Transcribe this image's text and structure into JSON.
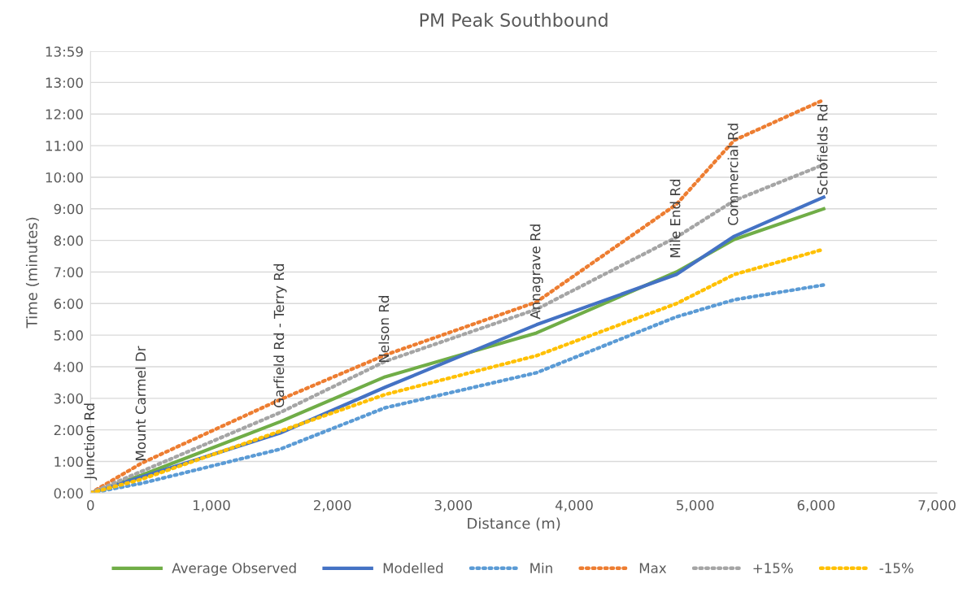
{
  "chart_data": {
    "type": "line",
    "title": "PM Peak Southbound",
    "xlabel": "Distance (m)",
    "ylabel": "Time (minutes)",
    "x": [
      0,
      424,
      1568,
      2436,
      3688,
      4845,
      5323,
      6063
    ],
    "series": [
      {
        "name": "Average Observed",
        "color": "#70ad47",
        "line_style": "solid",
        "values": [
          0,
          0.57,
          2.26,
          3.68,
          5.07,
          7.0,
          8.03,
          9.0
        ]
      },
      {
        "name": "Modelled",
        "color": "#4472c4",
        "line_style": "solid",
        "values": [
          0,
          0.51,
          1.9,
          3.35,
          5.33,
          6.92,
          8.13,
          9.37
        ]
      },
      {
        "name": "Min",
        "color": "#5b9bd5",
        "line_style": "dotted",
        "values": [
          0,
          0.31,
          1.39,
          2.7,
          3.81,
          5.58,
          6.12,
          6.59
        ]
      },
      {
        "name": "Max",
        "color": "#ed7d31",
        "line_style": "dotted",
        "values": [
          0,
          0.95,
          2.96,
          4.37,
          6.05,
          9.14,
          11.17,
          12.45
        ]
      },
      {
        "name": "+15%",
        "color": "#a5a5a5",
        "line_style": "dotted",
        "values": [
          0,
          0.69,
          2.55,
          4.17,
          5.82,
          8.1,
          9.26,
          10.4
        ]
      },
      {
        "name": "-15%",
        "color": "#ffc000",
        "line_style": "dotted",
        "values": [
          0,
          0.44,
          1.96,
          3.12,
          4.35,
          6.0,
          6.92,
          7.72
        ]
      }
    ],
    "annotations": [
      {
        "text": "Junction Rd",
        "x": 0,
        "y": 0
      },
      {
        "text": "Mount Carmel Dr",
        "x": 424,
        "y": 0.57
      },
      {
        "text": "Garfield Rd - Terry Rd",
        "x": 1568,
        "y": 2.26
      },
      {
        "text": "Nelson Rd",
        "x": 2436,
        "y": 3.68
      },
      {
        "text": "Annagrave Rd",
        "x": 3688,
        "y": 5.07
      },
      {
        "text": "Mile End Rd",
        "x": 4845,
        "y": 7.0
      },
      {
        "text": "Commercial Rd",
        "x": 5323,
        "y": 8.03
      },
      {
        "text": "Schofields Rd",
        "x": 6063,
        "y": 9.0
      }
    ],
    "xlim": [
      0,
      7000
    ],
    "xticks": [
      0,
      {
        "value": 1000,
        "label": "1,000"
      },
      {
        "value": 2000,
        "label": "2,000"
      },
      {
        "value": 3000,
        "label": "3,000"
      },
      {
        "value": 4000,
        "label": "4,000"
      },
      {
        "value": 5000,
        "label": "5,000"
      },
      {
        "value": 6000,
        "label": "6,000"
      },
      {
        "value": 7000,
        "label": "7,000"
      }
    ],
    "ylim": [
      0,
      13.983
    ],
    "yticks": [
      {
        "value": 0,
        "label": "0:00"
      },
      {
        "value": 1,
        "label": "1:00"
      },
      {
        "value": 2,
        "label": "2:00"
      },
      {
        "value": 3,
        "label": "3:00"
      },
      {
        "value": 4,
        "label": "4:00"
      },
      {
        "value": 5,
        "label": "5:00"
      },
      {
        "value": 6,
        "label": "6:00"
      },
      {
        "value": 7,
        "label": "7:00"
      },
      {
        "value": 8,
        "label": "8:00"
      },
      {
        "value": 9,
        "label": "9:00"
      },
      {
        "value": 10,
        "label": "10:00"
      },
      {
        "value": 11,
        "label": "11:00"
      },
      {
        "value": 12,
        "label": "12:00"
      },
      {
        "value": 13,
        "label": "13:00"
      },
      {
        "value": 13.983,
        "label": "13:59"
      }
    ],
    "grid": "y",
    "legend": "bottom",
    "marker": "none"
  }
}
